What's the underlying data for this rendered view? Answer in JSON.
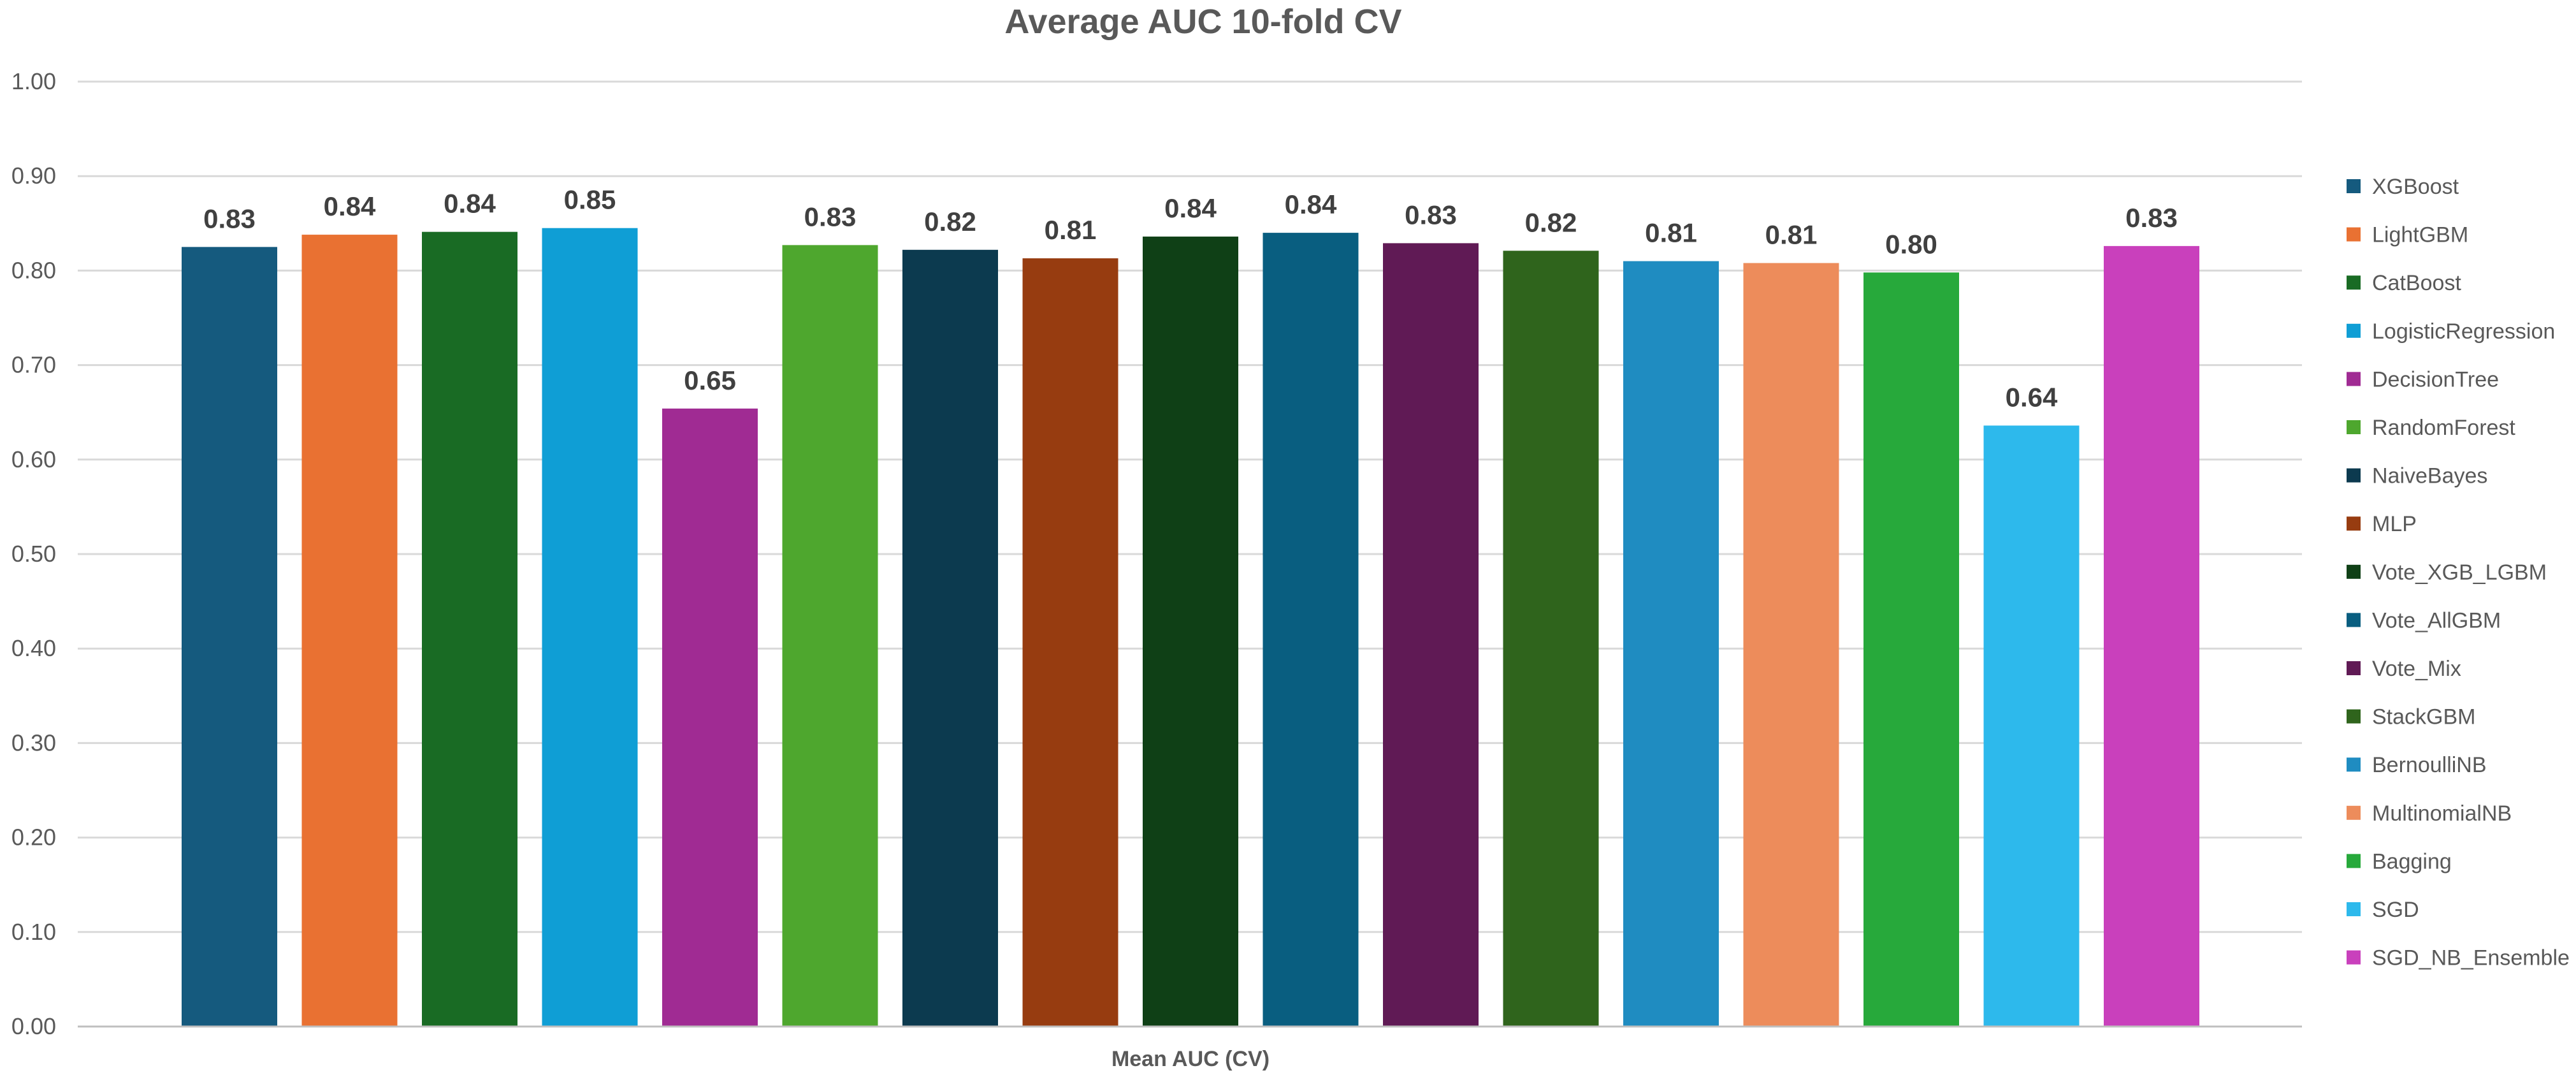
{
  "chart_data": {
    "type": "bar",
    "title": "Average AUC 10-fold CV",
    "xlabel": "Mean AUC (CV)",
    "ylabel": "",
    "ylim": [
      0,
      1.0
    ],
    "yticks": [
      "0.00",
      "0.10",
      "0.20",
      "0.30",
      "0.40",
      "0.50",
      "0.60",
      "0.70",
      "0.80",
      "0.90",
      "1.00"
    ],
    "grid": true,
    "legend_position": "right",
    "categories": [
      "Mean AUC (CV)"
    ],
    "series": [
      {
        "name": "XGBoost",
        "value": 0.825,
        "label": "0.83",
        "color": "#155A7E"
      },
      {
        "name": "LightGBM",
        "value": 0.838,
        "label": "0.84",
        "color": "#E97132"
      },
      {
        "name": "CatBoost",
        "value": 0.841,
        "label": "0.84",
        "color": "#196B24"
      },
      {
        "name": "LogisticRegression",
        "value": 0.845,
        "label": "0.85",
        "color": "#0F9ED5"
      },
      {
        "name": "DecisionTree",
        "value": 0.654,
        "label": "0.65",
        "color": "#A02B93"
      },
      {
        "name": "RandomForest",
        "value": 0.827,
        "label": "0.83",
        "color": "#4EA72E"
      },
      {
        "name": "NaiveBayes",
        "value": 0.822,
        "label": "0.82",
        "color": "#0C3A4F"
      },
      {
        "name": "MLP",
        "value": 0.813,
        "label": "0.81",
        "color": "#973C10"
      },
      {
        "name": "Vote_XGB_LGBM",
        "value": 0.836,
        "label": "0.84",
        "color": "#0F4016"
      },
      {
        "name": "Vote_AllGBM",
        "value": 0.84,
        "label": "0.84",
        "color": "#095E80"
      },
      {
        "name": "Vote_Mix",
        "value": 0.829,
        "label": "0.83",
        "color": "#601A55"
      },
      {
        "name": "StackGBM",
        "value": 0.821,
        "label": "0.82",
        "color": "#2F641C"
      },
      {
        "name": "BernoulliNB",
        "value": 0.81,
        "label": "0.81",
        "color": "#1F8CC1"
      },
      {
        "name": "MultinomialNB",
        "value": 0.808,
        "label": "0.81",
        "color": "#ED8C5B"
      },
      {
        "name": "Bagging",
        "value": 0.798,
        "label": "0.80",
        "color": "#27A93B"
      },
      {
        "name": "SGD",
        "value": 0.636,
        "label": "0.64",
        "color": "#2DB9EC"
      },
      {
        "name": "SGD_NB_Ensemble",
        "value": 0.826,
        "label": "0.83",
        "color": "#C940BC"
      }
    ]
  }
}
